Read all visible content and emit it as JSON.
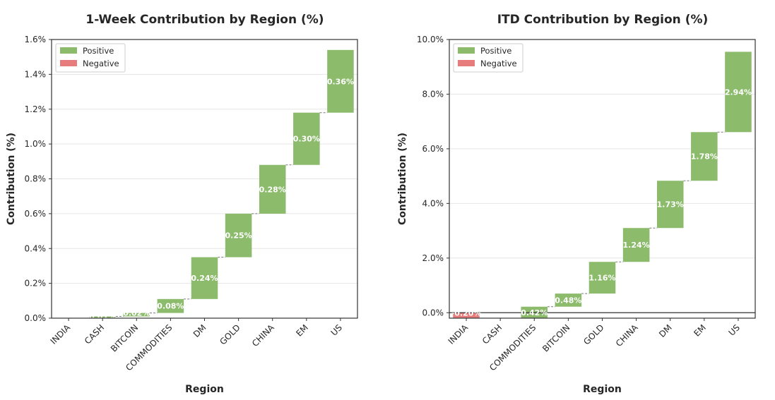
{
  "chart_data": [
    {
      "type": "bar",
      "subtype": "waterfall",
      "title": "1-Week Contribution by Region (%)",
      "xlabel": "Region",
      "ylabel": "Contribution (%)",
      "ylim": [
        0,
        1.6
      ],
      "yticks": [
        0,
        0.2,
        0.4,
        0.6,
        0.8,
        1.0,
        1.2,
        1.4,
        1.6
      ],
      "ytick_labels": [
        "0.0%",
        "0.2%",
        "0.4%",
        "0.6%",
        "0.8%",
        "1.0%",
        "1.2%",
        "1.4%",
        "1.6%"
      ],
      "categories": [
        "INDIA",
        "CASH",
        "BITCOIN",
        "COMMODITIES",
        "DM",
        "GOLD",
        "CHINA",
        "EM",
        "US"
      ],
      "values": [
        0.0,
        0.01,
        0.02,
        0.08,
        0.24,
        0.25,
        0.28,
        0.3,
        0.36
      ],
      "value_labels": [
        "0.00%",
        "0.01%",
        "0.02%",
        "0.08%",
        "0.24%",
        "0.25%",
        "0.28%",
        "0.30%",
        "0.36%"
      ],
      "grid": true,
      "legend": {
        "position": "top-left",
        "entries": [
          {
            "label": "Positive",
            "color": "#8bbb6b"
          },
          {
            "label": "Negative",
            "color": "#e67c7c"
          }
        ]
      }
    },
    {
      "type": "bar",
      "subtype": "waterfall",
      "title": "ITD Contribution by Region (%)",
      "xlabel": "Region",
      "ylabel": "Contribution (%)",
      "ylim": [
        -0.2,
        10.0
      ],
      "yticks": [
        0,
        2,
        4,
        6,
        8,
        10
      ],
      "ytick_labels": [
        "0.0%",
        "2.0%",
        "4.0%",
        "6.0%",
        "8.0%",
        "10.0%"
      ],
      "categories": [
        "INDIA",
        "CASH",
        "COMMODITIES",
        "BITCOIN",
        "GOLD",
        "CHINA",
        "DM",
        "EM",
        "US"
      ],
      "values": [
        -0.2,
        0.0,
        0.42,
        0.48,
        1.16,
        1.24,
        1.73,
        1.78,
        2.94
      ],
      "value_labels": [
        "-0.20%",
        "0.00%",
        "0.42%",
        "0.48%",
        "1.16%",
        "1.24%",
        "1.73%",
        "1.78%",
        "2.94%"
      ],
      "grid": true,
      "legend": {
        "position": "top-left",
        "entries": [
          {
            "label": "Positive",
            "color": "#8bbb6b"
          },
          {
            "label": "Negative",
            "color": "#e67c7c"
          }
        ]
      }
    }
  ],
  "colors": {
    "positive": "#8bbb6b",
    "negative": "#e67c7c"
  }
}
